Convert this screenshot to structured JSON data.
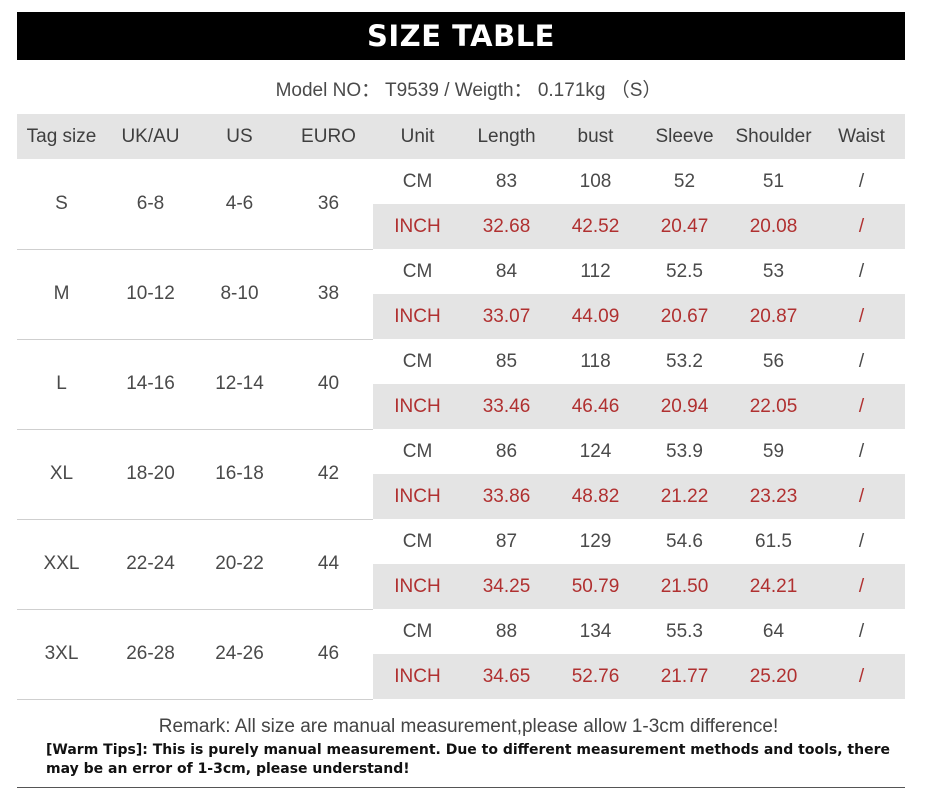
{
  "title": "SIZE TABLE",
  "model_line": "Model NO： T9539 / Weigth： 0.171kg （S）",
  "headers": [
    "Tag size",
    "UK/AU",
    "US",
    "EURO",
    "Unit",
    "Length",
    "bust",
    "Sleeve",
    "Shoulder",
    "Waist"
  ],
  "rows": [
    {
      "tag": "S",
      "uk": "6-8",
      "us": "4-6",
      "euro": "36",
      "cm": {
        "unit": "CM",
        "length": "83",
        "bust": "108",
        "sleeve": "52",
        "shoulder": "51",
        "waist": "/"
      },
      "inch": {
        "unit": "INCH",
        "length": "32.68",
        "bust": "42.52",
        "sleeve": "20.47",
        "shoulder": "20.08",
        "waist": "/"
      }
    },
    {
      "tag": "M",
      "uk": "10-12",
      "us": "8-10",
      "euro": "38",
      "cm": {
        "unit": "CM",
        "length": "84",
        "bust": "112",
        "sleeve": "52.5",
        "shoulder": "53",
        "waist": "/"
      },
      "inch": {
        "unit": "INCH",
        "length": "33.07",
        "bust": "44.09",
        "sleeve": "20.67",
        "shoulder": "20.87",
        "waist": "/"
      }
    },
    {
      "tag": "L",
      "uk": "14-16",
      "us": "12-14",
      "euro": "40",
      "cm": {
        "unit": "CM",
        "length": "85",
        "bust": "118",
        "sleeve": "53.2",
        "shoulder": "56",
        "waist": "/"
      },
      "inch": {
        "unit": "INCH",
        "length": "33.46",
        "bust": "46.46",
        "sleeve": "20.94",
        "shoulder": "22.05",
        "waist": "/"
      }
    },
    {
      "tag": "XL",
      "uk": "18-20",
      "us": "16-18",
      "euro": "42",
      "cm": {
        "unit": "CM",
        "length": "86",
        "bust": "124",
        "sleeve": "53.9",
        "shoulder": "59",
        "waist": "/"
      },
      "inch": {
        "unit": "INCH",
        "length": "33.86",
        "bust": "48.82",
        "sleeve": "21.22",
        "shoulder": "23.23",
        "waist": "/"
      }
    },
    {
      "tag": "XXL",
      "uk": "22-24",
      "us": "20-22",
      "euro": "44",
      "cm": {
        "unit": "CM",
        "length": "87",
        "bust": "129",
        "sleeve": "54.6",
        "shoulder": "61.5",
        "waist": "/"
      },
      "inch": {
        "unit": "INCH",
        "length": "34.25",
        "bust": "50.79",
        "sleeve": "21.50",
        "shoulder": "24.21",
        "waist": "/"
      }
    },
    {
      "tag": "3XL",
      "uk": "26-28",
      "us": "24-26",
      "euro": "46",
      "cm": {
        "unit": "CM",
        "length": "88",
        "bust": "134",
        "sleeve": "55.3",
        "shoulder": "64",
        "waist": "/"
      },
      "inch": {
        "unit": "INCH",
        "length": "34.65",
        "bust": "52.76",
        "sleeve": "21.77",
        "shoulder": "25.20",
        "waist": "/"
      }
    }
  ],
  "remark": "Remark: All size are manual measurement,please allow 1-3cm difference!",
  "warm_tips": "[Warm Tips]: This is purely manual measurement. Due to different measurement methods and tools, there may be an error of 1-3cm, please understand!",
  "colors": {
    "title_bg": "#000000",
    "header_bg": "#e4e4e4",
    "inch_text": "#b03030"
  }
}
